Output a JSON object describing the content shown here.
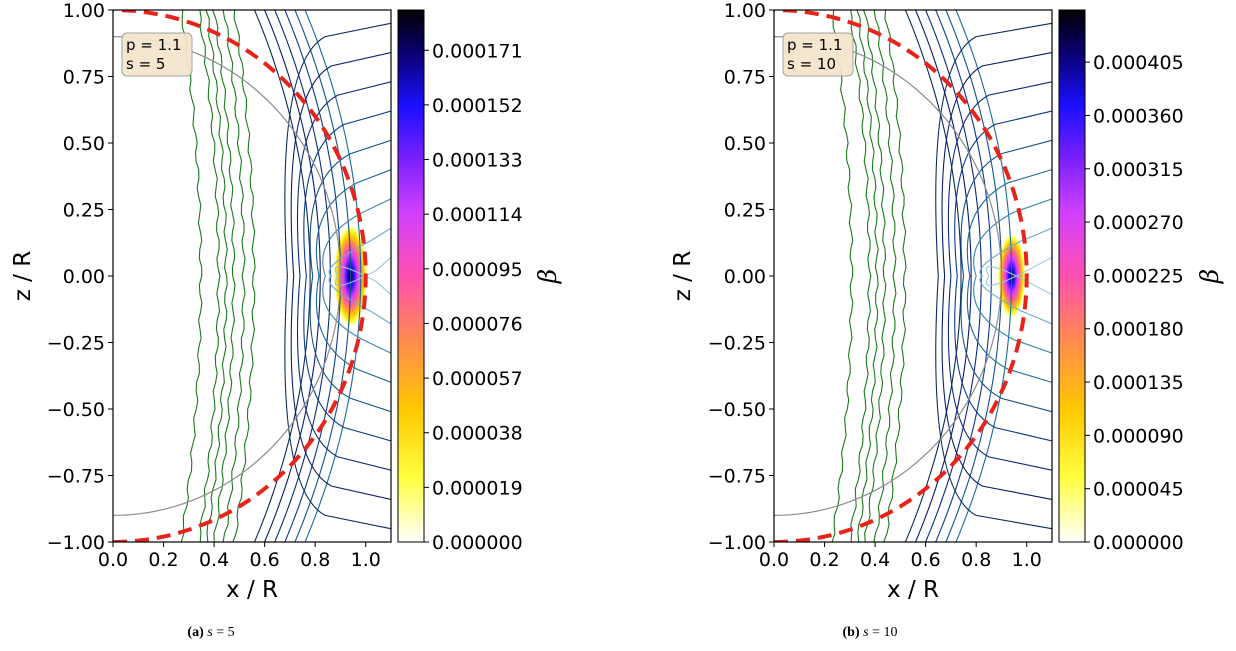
{
  "chart_data": [
    {
      "type": "heatmap",
      "panel": "a",
      "caption": {
        "tag": "(a)",
        "variable": "s",
        "relation": " = ",
        "value": "5"
      },
      "xlabel": "x / R",
      "ylabel": "z / R",
      "xlim": [
        0.0,
        1.1
      ],
      "ylim": [
        -1.0,
        1.0
      ],
      "xticks": [
        "0.0",
        "0.2",
        "0.4",
        "0.6",
        "0.8",
        "1.0"
      ],
      "yticks": [
        "1.00",
        "0.75",
        "0.50",
        "0.25",
        "0.00",
        "−0.25",
        "−0.50",
        "−0.75",
        "−1.00"
      ],
      "infobox": {
        "line1": "p = 1.1",
        "line2": "s = 5"
      },
      "colorbar": {
        "label": "β",
        "min": 0.0,
        "max": 0.000185,
        "ticks": [
          "0.000171",
          "0.000152",
          "0.000133",
          "0.000114",
          "0.000095",
          "0.000076",
          "0.000057",
          "0.000038",
          "0.000019",
          "0.000000"
        ],
        "tick_values": [
          0.000171,
          0.000152,
          0.000133,
          0.000114,
          9.5e-05,
          7.6e-05,
          5.7e-05,
          3.8e-05,
          1.9e-05,
          0.0
        ],
        "colormap": "gnuplot2_r"
      },
      "hotspot": {
        "x": 0.94,
        "z": 0.0,
        "peak": 0.000185
      },
      "reference_circle": {
        "radius": 1.0,
        "color": "#e8231a"
      },
      "inner_circle": {
        "radius": 0.9,
        "color": "#8c8c8c"
      },
      "grid": false
    },
    {
      "type": "heatmap",
      "panel": "b",
      "caption": {
        "tag": "(b)",
        "variable": "s",
        "relation": " = ",
        "value": "10"
      },
      "xlabel": "x / R",
      "ylabel": "z / R",
      "xlim": [
        0.0,
        1.1
      ],
      "ylim": [
        -1.0,
        1.0
      ],
      "xticks": [
        "0.0",
        "0.2",
        "0.4",
        "0.6",
        "0.8",
        "1.0"
      ],
      "yticks": [
        "1.00",
        "0.75",
        "0.50",
        "0.25",
        "0.00",
        "−0.25",
        "−0.50",
        "−0.75",
        "−1.00"
      ],
      "infobox": {
        "line1": "p = 1.1",
        "line2": "s = 10"
      },
      "colorbar": {
        "label": "β",
        "min": 0.0,
        "max": 0.000449,
        "ticks": [
          "0.000405",
          "0.000360",
          "0.000315",
          "0.000270",
          "0.000225",
          "0.000180",
          "0.000135",
          "0.000090",
          "0.000045",
          "0.000000"
        ],
        "tick_values": [
          0.000405,
          0.00036,
          0.000315,
          0.00027,
          0.000225,
          0.00018,
          0.000135,
          9e-05,
          4.5e-05,
          0.0
        ],
        "colormap": "gnuplot2_r"
      },
      "hotspot": {
        "x": 0.94,
        "z": 0.0,
        "peak": 0.000449
      },
      "reference_circle": {
        "radius": 1.0,
        "color": "#e8231a"
      },
      "inner_circle": {
        "radius": 0.9,
        "color": "#8c8c8c"
      },
      "grid": false
    }
  ]
}
